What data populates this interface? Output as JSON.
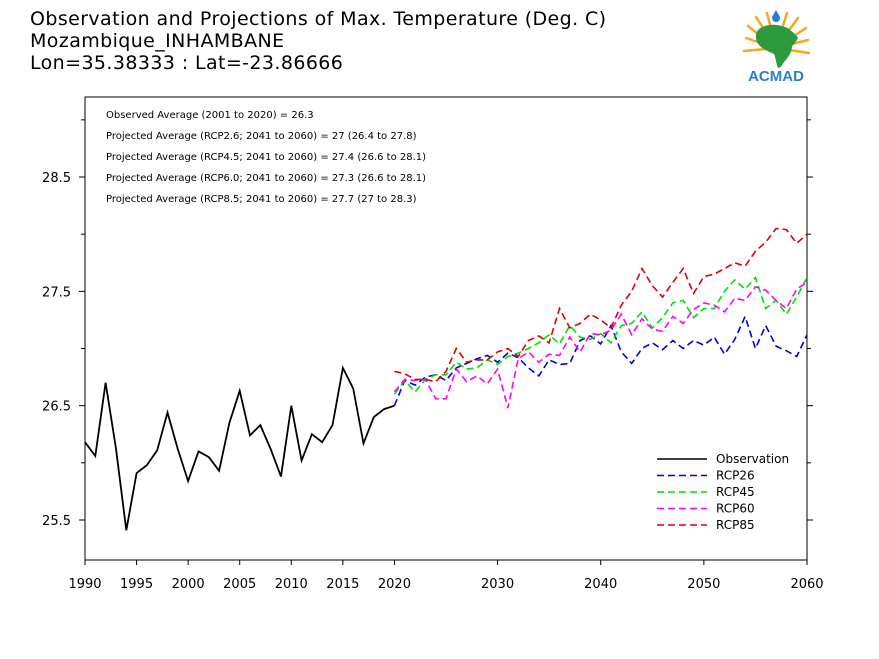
{
  "title": {
    "line1": "Observation and Projections of Max. Temperature (Deg. C)",
    "line2": "Mozambique_INHAMBANE",
    "line3": "Lon=35.38333 : Lat=-23.86666"
  },
  "logo": {
    "text": "ACMAD",
    "icon": "africa-map-icon",
    "colors": {
      "map": "#2e9a3e",
      "rays": "#f5a623",
      "drop": "#2a7fd4",
      "text": "#2a7fd4"
    }
  },
  "annotations": [
    "Observed Average (2001 to 2020) = 26.3",
    "Projected Average (RCP2.6; 2041 to 2060) = 27 (26.4 to 27.8)",
    "Projected Average (RCP4.5; 2041 to 2060) = 27.4 (26.6 to 28.1)",
    "Projected Average (RCP6.0; 2041 to 2060) = 27.3 (26.6 to 28.1)",
    "Projected Average (RCP8.5; 2041 to 2060) = 27.7 (27 to 28.3)"
  ],
  "chart_data": {
    "type": "line",
    "xlim": [
      1990,
      2060
    ],
    "ylim": [
      25.15,
      29.2
    ],
    "x_ticks": [
      {
        "value": 1990,
        "label": "1990"
      },
      {
        "value": 1995,
        "label": "1995"
      },
      {
        "value": 2000,
        "label": "2000"
      },
      {
        "value": 2005,
        "label": "2005"
      },
      {
        "value": 2010,
        "label": "2010"
      },
      {
        "value": 2015,
        "label": "2015"
      },
      {
        "value": 2020,
        "label": "2020"
      },
      {
        "value": 2030,
        "label": "2030"
      },
      {
        "value": 2040,
        "label": "2040"
      },
      {
        "value": 2050,
        "label": "2050"
      },
      {
        "value": 2060,
        "label": "2060"
      }
    ],
    "y_ticks": [
      {
        "value": 25.5,
        "label": "25.5"
      },
      {
        "value": 26.5,
        "label": "26.5"
      },
      {
        "value": 27.5,
        "label": "27.5"
      },
      {
        "value": 28.5,
        "label": "28.5"
      }
    ],
    "legend_position": "bottom-right",
    "series": [
      {
        "name": "Observation",
        "color": "#000000",
        "dashed": false,
        "x": [
          1990,
          1991,
          1992,
          1993,
          1994,
          1995,
          1996,
          1997,
          1998,
          1999,
          2000,
          2001,
          2002,
          2003,
          2004,
          2005,
          2006,
          2007,
          2008,
          2009,
          2010,
          2011,
          2012,
          2013,
          2014,
          2015,
          2016,
          2017,
          2018,
          2019,
          2020
        ],
        "y": [
          26.18,
          26.06,
          26.7,
          26.13,
          25.41,
          25.91,
          25.98,
          26.11,
          26.44,
          26.12,
          25.84,
          26.1,
          26.05,
          25.93,
          26.35,
          26.63,
          26.24,
          26.33,
          26.12,
          25.88,
          26.5,
          26.02,
          26.25,
          26.18,
          26.33,
          26.83,
          26.65,
          26.17,
          26.4,
          26.47,
          26.5
        ]
      },
      {
        "name": "RCP26",
        "color": "#0000e0",
        "dashed": true,
        "x": [
          2020,
          2021,
          2022,
          2023,
          2024,
          2025,
          2026,
          2027,
          2028,
          2029,
          2030,
          2031,
          2032,
          2033,
          2034,
          2035,
          2036,
          2037,
          2038,
          2039,
          2040,
          2041,
          2042,
          2043,
          2044,
          2045,
          2046,
          2047,
          2048,
          2049,
          2050,
          2051,
          2052,
          2053,
          2054,
          2055,
          2056,
          2057,
          2058,
          2059,
          2060
        ],
        "y": [
          26.5,
          26.72,
          26.68,
          26.75,
          26.77,
          26.72,
          26.83,
          26.87,
          26.91,
          26.94,
          26.88,
          26.96,
          26.92,
          26.83,
          26.76,
          26.9,
          26.86,
          26.87,
          27.07,
          27.11,
          27.04,
          27.2,
          26.97,
          26.87,
          27.0,
          27.05,
          26.99,
          27.07,
          27.0,
          27.07,
          27.03,
          27.1,
          26.95,
          27.08,
          27.28,
          27.0,
          27.2,
          27.02,
          26.98,
          26.93,
          27.12
        ]
      },
      {
        "name": "RCP45",
        "color": "#00e000",
        "dashed": true,
        "x": [
          2020,
          2021,
          2022,
          2023,
          2024,
          2025,
          2026,
          2027,
          2028,
          2029,
          2030,
          2031,
          2032,
          2033,
          2034,
          2035,
          2036,
          2037,
          2038,
          2039,
          2040,
          2041,
          2042,
          2043,
          2044,
          2045,
          2046,
          2047,
          2048,
          2049,
          2050,
          2051,
          2052,
          2053,
          2054,
          2055,
          2056,
          2057,
          2058,
          2059,
          2060
        ],
        "y": [
          26.6,
          26.72,
          26.62,
          26.73,
          26.77,
          26.77,
          26.88,
          26.82,
          26.83,
          26.9,
          26.86,
          26.93,
          26.96,
          27.0,
          27.05,
          27.12,
          27.04,
          27.2,
          27.1,
          27.08,
          27.13,
          27.05,
          27.2,
          27.22,
          27.32,
          27.18,
          27.27,
          27.4,
          27.42,
          27.27,
          27.35,
          27.35,
          27.5,
          27.6,
          27.52,
          27.62,
          27.35,
          27.42,
          27.3,
          27.45,
          27.62
        ]
      },
      {
        "name": "RCP60",
        "color": "#ff00ff",
        "dashed": true,
        "x": [
          2020,
          2021,
          2022,
          2023,
          2024,
          2025,
          2026,
          2027,
          2028,
          2029,
          2030,
          2031,
          2032,
          2033,
          2034,
          2035,
          2036,
          2037,
          2038,
          2039,
          2040,
          2041,
          2042,
          2043,
          2044,
          2045,
          2046,
          2047,
          2048,
          2049,
          2050,
          2051,
          2052,
          2053,
          2054,
          2055,
          2056,
          2057,
          2058,
          2059,
          2060
        ],
        "y": [
          26.62,
          26.73,
          26.72,
          26.73,
          26.56,
          26.56,
          26.82,
          26.71,
          26.76,
          26.69,
          26.82,
          26.48,
          26.91,
          26.97,
          26.88,
          26.95,
          26.94,
          27.1,
          26.97,
          27.13,
          27.12,
          27.16,
          27.3,
          27.12,
          27.26,
          27.17,
          27.15,
          27.28,
          27.22,
          27.34,
          27.4,
          27.38,
          27.32,
          27.44,
          27.42,
          27.54,
          27.51,
          27.42,
          27.35,
          27.52,
          27.58
        ]
      },
      {
        "name": "RCP85",
        "color": "#e00000",
        "dashed": true,
        "x": [
          2020,
          2021,
          2022,
          2023,
          2024,
          2025,
          2026,
          2027,
          2028,
          2029,
          2030,
          2031,
          2032,
          2033,
          2034,
          2035,
          2036,
          2037,
          2038,
          2039,
          2040,
          2041,
          2042,
          2043,
          2044,
          2045,
          2046,
          2047,
          2048,
          2049,
          2050,
          2051,
          2052,
          2053,
          2054,
          2055,
          2056,
          2057,
          2058,
          2059,
          2060
        ],
        "y": [
          26.8,
          26.78,
          26.73,
          26.73,
          26.71,
          26.8,
          27.0,
          26.88,
          26.9,
          26.9,
          26.97,
          27.0,
          26.93,
          27.07,
          27.11,
          27.05,
          27.35,
          27.18,
          27.22,
          27.3,
          27.25,
          27.18,
          27.38,
          27.5,
          27.7,
          27.55,
          27.45,
          27.58,
          27.7,
          27.48,
          27.63,
          27.65,
          27.7,
          27.75,
          27.72,
          27.85,
          27.93,
          28.05,
          28.04,
          27.92,
          28.0
        ]
      }
    ]
  }
}
